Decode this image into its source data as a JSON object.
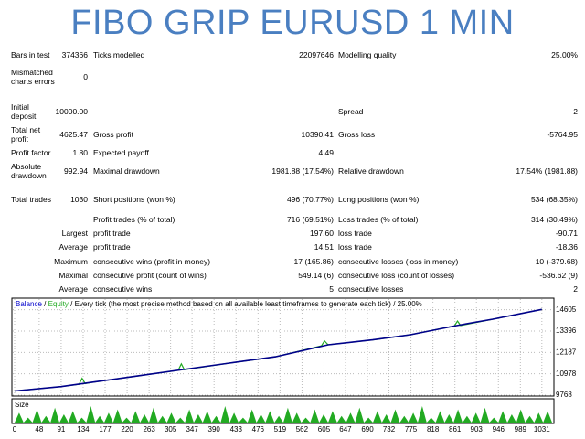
{
  "title": "FIBO GRIP EURUSD 1 MIN",
  "report": {
    "rows": [
      [
        "Bars in test",
        "374366",
        "Ticks modelled",
        "22097646",
        "Modelling quality",
        "25.00%"
      ],
      [
        "Mismatched charts errors",
        "0",
        null,
        null,
        null,
        null
      ],
      [
        "Initial deposit",
        "10000.00",
        null,
        null,
        "Spread",
        "2"
      ],
      [
        "Total net profit",
        "4625.47",
        "Gross profit",
        "10390.41",
        "Gross loss",
        "-5764.95"
      ],
      [
        "Profit factor",
        "1.80",
        "Expected payoff",
        "4.49",
        null,
        null
      ],
      [
        "Absolute drawdown",
        "992.94",
        "Maximal drawdown",
        "1981.88 (17.54%)",
        "Relative drawdown",
        "17.54% (1981.88)"
      ],
      [
        "Total trades",
        "1030",
        "Short positions (won %)",
        "496 (70.77%)",
        "Long positions (won %)",
        "534 (68.35%)"
      ],
      [
        null,
        null,
        "Profit trades (% of total)",
        "716 (69.51%)",
        "Loss trades (% of total)",
        "314 (30.49%)"
      ],
      [
        "Largest",
        null,
        "profit trade",
        "197.60",
        "loss trade",
        "-90.71"
      ],
      [
        "Average",
        null,
        "profit trade",
        "14.51",
        "loss trade",
        "-18.36"
      ],
      [
        "Maximum",
        null,
        "consecutive wins (profit in money)",
        "17 (165.86)",
        "consecutive losses (loss in money)",
        "10 (-379.68)"
      ],
      [
        "Maximal",
        null,
        "consecutive profit (count of wins)",
        "549.14 (6)",
        "consecutive loss (count of losses)",
        "-536.62 (9)"
      ],
      [
        "Average",
        null,
        "consecutive wins",
        "5",
        "consecutive losses",
        "2"
      ]
    ]
  },
  "chart": {
    "legend": {
      "balance": "Balance",
      "equity": "Equity",
      "separator": "/",
      "description": "Every tick (the most precise method based on all available least timeframes to generate each tick)",
      "quality": "25.00%"
    },
    "balance_color": "#00008b",
    "equity_color": "#22aa22",
    "size_color": "#22aa22",
    "xlim": [
      0,
      1051
    ],
    "ylim": [
      9768,
      15210
    ],
    "xticks": [
      0,
      48,
      91,
      134,
      177,
      220,
      263,
      305,
      347,
      390,
      433,
      476,
      519,
      562,
      605,
      647,
      690,
      732,
      775,
      818,
      861,
      903,
      946,
      989,
      1031
    ],
    "yticks": [
      14605,
      13396,
      12187,
      10978,
      9768
    ],
    "balance": {
      "x": [
        0,
        91,
        150,
        240,
        330,
        420,
        510,
        613,
        700,
        774,
        863,
        935,
        1031
      ],
      "values": [
        10000,
        10250,
        10490,
        10850,
        11220,
        11580,
        11940,
        12620,
        12900,
        13190,
        13700,
        14070,
        14625.47
      ]
    },
    "equity": {
      "x": [
        0,
        91,
        126,
        132,
        138,
        150,
        240,
        320,
        326,
        332,
        420,
        510,
        600,
        606,
        613,
        700,
        774,
        860,
        866,
        872,
        935,
        1031
      ],
      "values": [
        10000,
        10250,
        10380,
        10720,
        10420,
        10490,
        10850,
        11180,
        11540,
        11210,
        11580,
        11940,
        12560,
        12840,
        12620,
        12900,
        13190,
        13690,
        13960,
        13710,
        14070,
        14625.47
      ]
    },
    "size_label": "Size",
    "size": [
      6,
      3,
      8,
      4,
      9,
      5,
      7,
      3,
      10,
      4,
      6,
      8,
      3,
      7,
      5,
      9,
      4,
      6,
      3,
      8,
      5,
      7,
      4,
      10,
      6,
      3,
      8,
      5,
      7,
      4,
      9,
      6,
      3,
      8,
      5,
      7,
      4,
      6,
      9,
      3,
      7,
      5,
      8,
      4,
      6,
      10,
      3,
      7,
      5,
      8,
      4,
      6,
      9,
      3,
      7,
      5,
      8,
      4,
      6,
      7
    ]
  }
}
